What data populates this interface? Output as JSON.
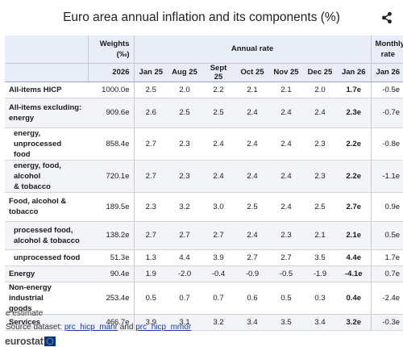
{
  "title": "Euro area annual inflation and its components (%)",
  "icons": {
    "share": "share-icon",
    "flag": "eu-flag-icon"
  },
  "colors": {
    "header_bg": "#e8edf7",
    "alt_row_bg": "#f2f4f8",
    "link": "#1a3a9a",
    "flag_blue": "#003399",
    "flag_star": "#ffcc00"
  },
  "headers": {
    "weights_line1": "Weights",
    "weights_line2": "(‰)",
    "annual_rate": "Annual rate",
    "monthly_line1": "Monthly",
    "monthly_line2": "rate",
    "weights_year": "2026",
    "periods": [
      "Jan 25",
      "Aug 25",
      "Sept 25",
      "Oct 25",
      "Nov 25",
      "Dec 25",
      "Jan 26"
    ],
    "monthly_period": "Jan 26"
  },
  "rows": [
    {
      "label_lines": [
        "All-items HICP"
      ],
      "indent": false,
      "weight": "1000.0e",
      "values": [
        "2.5",
        "2.0",
        "2.2",
        "2.1",
        "2.1",
        "2.0",
        "1.7e"
      ],
      "monthly": "-0.5e"
    },
    {
      "label_lines": [
        "All-items excluding:",
        "energy"
      ],
      "indent": false,
      "weight": "909.6e",
      "values": [
        "2.6",
        "2.5",
        "2.5",
        "2.4",
        "2.4",
        "2.4",
        "2.3e"
      ],
      "monthly": "-0.7e"
    },
    {
      "label_lines": [
        "energy, unprocessed",
        "food"
      ],
      "indent": true,
      "weight": "858.4e",
      "values": [
        "2.7",
        "2.3",
        "2.4",
        "2.4",
        "2.4",
        "2.3",
        "2.2e"
      ],
      "monthly": "-0.8e"
    },
    {
      "label_lines": [
        "energy, food, alcohol",
        "& tobacco"
      ],
      "indent": true,
      "weight": "720.1e",
      "values": [
        "2.7",
        "2.3",
        "2.4",
        "2.4",
        "2.4",
        "2.3",
        "2.2e"
      ],
      "monthly": "-1.1e"
    },
    {
      "label_lines": [
        "Food, alcohol &",
        "tobacco"
      ],
      "indent": false,
      "weight": "189.5e",
      "values": [
        "2.3",
        "3.2",
        "3.0",
        "2.5",
        "2.4",
        "2.5",
        "2.7e"
      ],
      "monthly": "0.9e"
    },
    {
      "label_lines": [
        "processed food,",
        "alcohol & tobacco"
      ],
      "indent": true,
      "weight": "138.2e",
      "values": [
        "2.7",
        "2.7",
        "2.7",
        "2.4",
        "2.3",
        "2.1",
        "2.1e"
      ],
      "monthly": "0.5e"
    },
    {
      "label_lines": [
        "unprocessed food"
      ],
      "indent": true,
      "weight": "51.3e",
      "values": [
        "1.3",
        "4.4",
        "3.9",
        "2.7",
        "2.7",
        "3.5",
        "4.4e"
      ],
      "monthly": "1.7e"
    },
    {
      "label_lines": [
        "Energy"
      ],
      "indent": false,
      "weight": "90.4e",
      "values": [
        "1.9",
        "-2.0",
        "-0.4",
        "-0.9",
        "-0.5",
        "-1.9",
        "-4.1e"
      ],
      "monthly": "0.7e"
    },
    {
      "label_lines": [
        "Non-energy industrial",
        "goods"
      ],
      "indent": false,
      "weight": "253.4e",
      "values": [
        "0.5",
        "0.7",
        "0.7",
        "0.6",
        "0.5",
        "0.3",
        "0.4e"
      ],
      "monthly": "-2.4e"
    },
    {
      "label_lines": [
        "Services"
      ],
      "indent": false,
      "weight": "466.7e",
      "values": [
        "3.9",
        "3.1",
        "3.2",
        "3.4",
        "3.5",
        "3.4",
        "3.2e"
      ],
      "monthly": "-0.3e"
    }
  ],
  "footer": {
    "note": "e estimate",
    "source_prefix": "Source dataset: ",
    "source_link1": "prc_hicp_manr",
    "source_and": " and ",
    "source_link2": "prc_hicp_mmor",
    "logo_text": "eurostat"
  }
}
